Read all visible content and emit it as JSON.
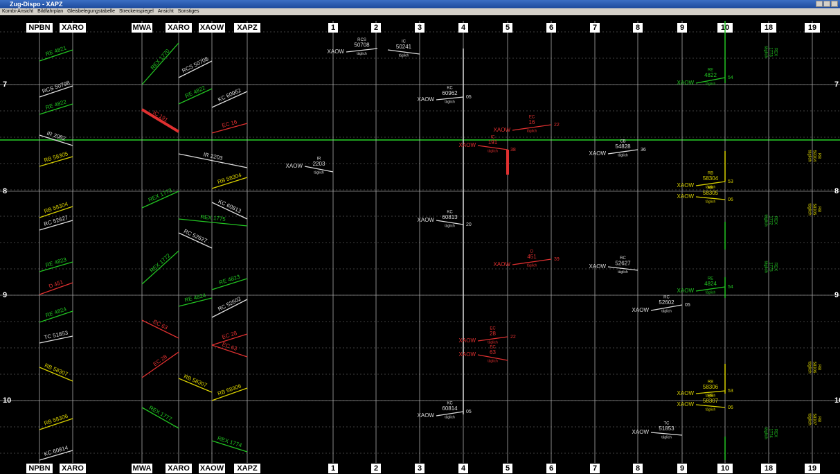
{
  "window": {
    "title": "Zug-Dispo - XAPZ",
    "menu": [
      "Kombi-Ansicht",
      "Bildfahrplan",
      "Gleisbelegungstabelle",
      "Streckenspiegel",
      "Ansicht",
      "Sonstiges"
    ]
  },
  "stations": [
    "NPBN",
    "XARO",
    "MWA",
    "XARO",
    "XAOW",
    "XAPZ",
    "1",
    "2",
    "3",
    "4",
    "5",
    "6",
    "7",
    "8",
    "9",
    "10",
    "18",
    "19"
  ],
  "hours": [
    "7",
    "8",
    "9",
    "10"
  ],
  "diagram_trains": [
    {
      "label": "RE 4821",
      "color": "#22c422"
    },
    {
      "label": "RCS 50798",
      "color": "#dddddd"
    },
    {
      "label": "RE 4822",
      "color": "#22c422"
    },
    {
      "label": "IR 2082",
      "color": "#dddddd"
    },
    {
      "label": "RB 58305",
      "color": "#d8d000"
    },
    {
      "label": "RB 58304",
      "color": "#d8d000"
    },
    {
      "label": "RC 52627",
      "color": "#dddddd"
    },
    {
      "label": "RE 4823",
      "color": "#22c422"
    },
    {
      "label": "D 451",
      "color": "#e03030"
    },
    {
      "label": "RE 4824",
      "color": "#22c422"
    },
    {
      "label": "TC 51853",
      "color": "#dddddd"
    },
    {
      "label": "RB 58307",
      "color": "#d8d000"
    },
    {
      "label": "RB 58306",
      "color": "#d8d000"
    },
    {
      "label": "KC 60814",
      "color": "#dddddd"
    },
    {
      "label": "REX 1770",
      "color": "#22c422"
    },
    {
      "label": "IC 191",
      "color": "#e03030"
    },
    {
      "label": "REX 1773",
      "color": "#22c422"
    },
    {
      "label": "REX 1772",
      "color": "#22c422"
    },
    {
      "label": "EC 63",
      "color": "#e03030"
    },
    {
      "label": "EC 28",
      "color": "#e03030"
    },
    {
      "label": "REX 1777",
      "color": "#22c422"
    },
    {
      "label": "RCS 50708",
      "color": "#dddddd"
    },
    {
      "label": "RE 4822",
      "color": "#22c422"
    },
    {
      "label": "KC 60962",
      "color": "#dddddd"
    },
    {
      "label": "EC 16",
      "color": "#e03030"
    },
    {
      "label": "IR 2203",
      "color": "#dddddd"
    },
    {
      "label": "RB 58304",
      "color": "#d8d000"
    },
    {
      "label": "KC 60813",
      "color": "#dddddd"
    },
    {
      "label": "REX 1775",
      "color": "#22c422"
    },
    {
      "label": "RC 52627",
      "color": "#dddddd"
    },
    {
      "label": "RE 4823",
      "color": "#22c422"
    },
    {
      "label": "RE 4824",
      "color": "#22c422"
    },
    {
      "label": "RC 52602",
      "color": "#dddddd"
    },
    {
      "label": "EC 28",
      "color": "#e03030"
    },
    {
      "label": "EC 63",
      "color": "#e03030"
    },
    {
      "label": "RB 58307",
      "color": "#d8d000"
    },
    {
      "label": "RB 58306",
      "color": "#d8d000"
    },
    {
      "label": "REX 1774",
      "color": "#22c422"
    }
  ],
  "timetable_trains": [
    {
      "category": "RCS",
      "number": "50708",
      "days": "täglich",
      "from": "XAOW",
      "color": "#dddddd"
    },
    {
      "category": "IC",
      "number": "50241",
      "days": "täglich",
      "color": "#dddddd"
    },
    {
      "category": "IR",
      "number": "2203",
      "days": "täglich",
      "from": "XAOW",
      "color": "#dddddd"
    },
    {
      "category": "KC",
      "number": "60962",
      "days": "täglich",
      "from": "XAOW",
      "minute": "05",
      "color": "#dddddd"
    },
    {
      "category": "EC",
      "number": "16",
      "days": "täglich",
      "from": "XAOW",
      "minute": "22",
      "color": "#e03030"
    },
    {
      "category": "IC",
      "number": "191",
      "days": "täglich",
      "from": "XAOW",
      "minute": "38",
      "color": "#e03030"
    },
    {
      "category": "CB",
      "number": "54828",
      "days": "täglich",
      "from": "XAOW",
      "minute": "36",
      "color": "#dddddd"
    },
    {
      "category": "RB",
      "number": "58304",
      "days": "täglich",
      "from": "XAOW",
      "minute": "53",
      "color": "#d8d000"
    },
    {
      "category": "RB",
      "number": "58305",
      "days": "täglich",
      "from": "XAOW",
      "minute": "06",
      "color": "#d8d000"
    },
    {
      "category": "KC",
      "number": "60813",
      "days": "täglich",
      "from": "XAOW",
      "minute": "20",
      "color": "#dddddd"
    },
    {
      "category": "D",
      "number": "451",
      "days": "täglich",
      "from": "XAOW",
      "minute": "39",
      "color": "#e03030"
    },
    {
      "category": "RC",
      "number": "52627",
      "days": "täglich",
      "from": "XAOW",
      "color": "#dddddd"
    },
    {
      "category": "RC",
      "number": "52602",
      "days": "täglich",
      "from": "XAOW",
      "minute": "05",
      "color": "#dddddd"
    },
    {
      "category": "EC",
      "number": "28",
      "days": "täglich",
      "from": "XAOW",
      "minute": "22",
      "color": "#e03030"
    },
    {
      "category": "EC",
      "number": "63",
      "days": "täglich",
      "from": "XAOW",
      "color": "#e03030"
    },
    {
      "category": "RB",
      "number": "58306",
      "days": "täglich",
      "from": "XAOW",
      "minute": "53",
      "color": "#d8d000"
    },
    {
      "category": "RB",
      "number": "58307",
      "days": "täglich",
      "from": "XAOW",
      "minute": "06",
      "color": "#d8d000"
    },
    {
      "category": "KC",
      "number": "60814",
      "days": "täglich",
      "from": "XAOW",
      "minute": "05",
      "color": "#dddddd"
    },
    {
      "category": "TC",
      "number": "51853",
      "days": "täglich",
      "from": "XAOW",
      "color": "#dddddd"
    },
    {
      "category": "RE",
      "number": "4822",
      "days": "täglich",
      "from": "XAOW",
      "minute": "54",
      "color": "#22c422"
    },
    {
      "category": "RE",
      "number": "4824",
      "days": "täglich",
      "from": "XAOW",
      "minute": "54",
      "color": "#22c422"
    }
  ],
  "side_labels": [
    {
      "category": "REX",
      "number": "1773",
      "days": "täglich",
      "color": "#22c422"
    },
    {
      "category": "REX",
      "number": "1772",
      "days": "täglich",
      "color": "#22c422"
    },
    {
      "category": "REX",
      "number": "1775",
      "days": "täglich",
      "color": "#22c422"
    },
    {
      "category": "REX",
      "number": "1774",
      "days": "täglich",
      "color": "#22c422"
    },
    {
      "category": "RB",
      "number": "58304",
      "days": "täglich",
      "color": "#d8d000"
    },
    {
      "category": "RB",
      "number": "58305",
      "days": "täglich",
      "color": "#d8d000"
    },
    {
      "category": "RB",
      "number": "58306",
      "days": "täglich",
      "color": "#d8d000"
    },
    {
      "category": "RB",
      "number": "58307",
      "days": "täglich",
      "color": "#d8d000"
    }
  ]
}
